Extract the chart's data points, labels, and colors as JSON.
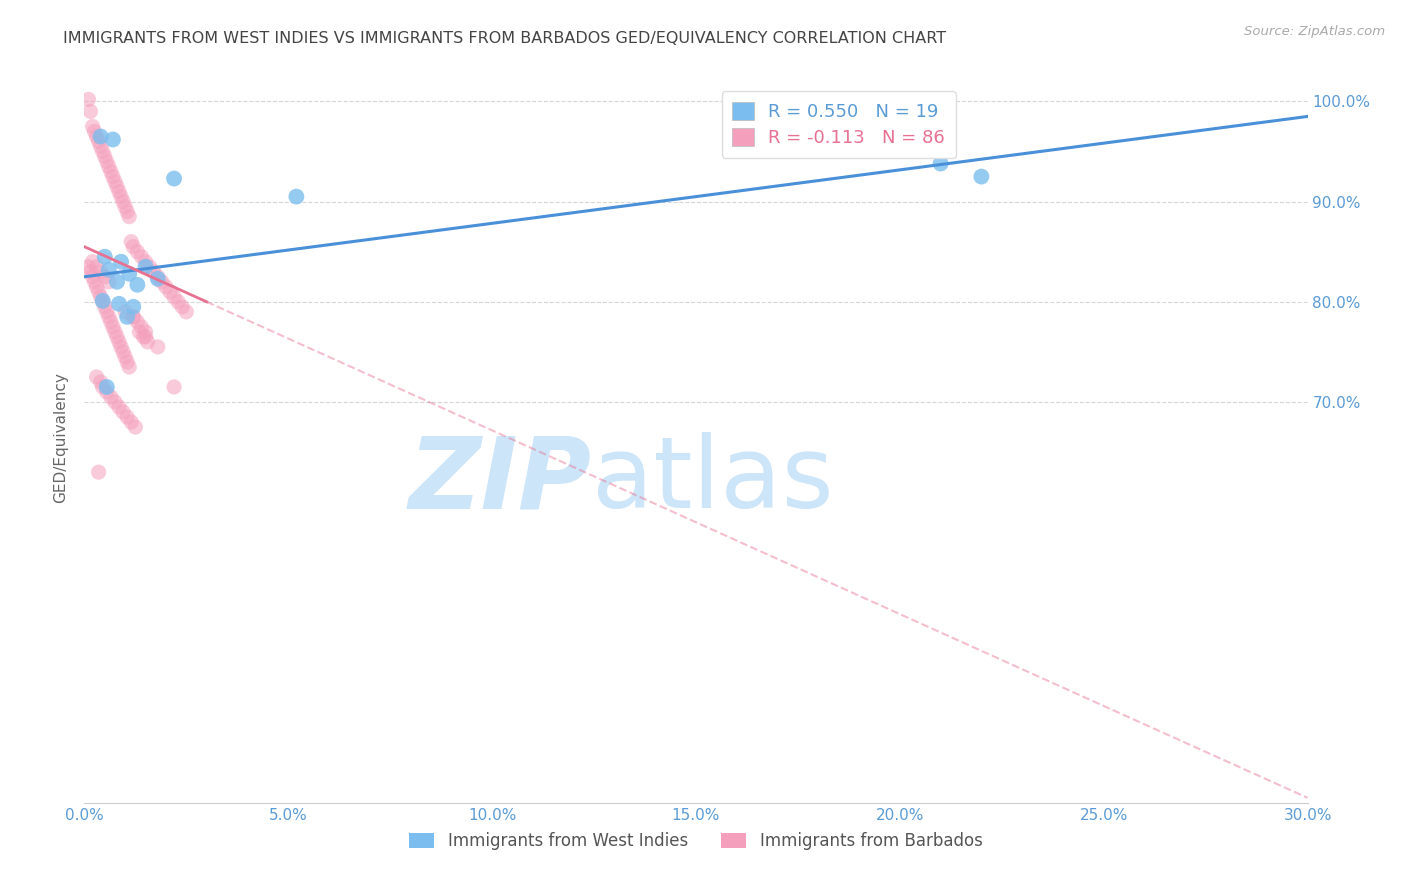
{
  "title": "IMMIGRANTS FROM WEST INDIES VS IMMIGRANTS FROM BARBADOS GED/EQUIVALENCY CORRELATION CHART",
  "source": "Source: ZipAtlas.com",
  "xlabel_vals": [
    0.0,
    5.0,
    10.0,
    15.0,
    20.0,
    25.0,
    30.0
  ],
  "ylabel_vals": [
    70.0,
    80.0,
    90.0,
    100.0
  ],
  "xmin": 0.0,
  "xmax": 30.0,
  "ymin": 30.0,
  "ymax": 103.0,
  "R_blue": 0.55,
  "N_blue": 19,
  "R_pink": -0.113,
  "N_pink": 86,
  "blue_color": "#7bbdee",
  "pink_color": "#f4a0bc",
  "blue_line_color": "#4a90d9",
  "pink_line_color": "#e87090",
  "ylabel": "GED/Equivalency",
  "legend_label_blue": "Immigrants from West Indies",
  "legend_label_pink": "Immigrants from Barbados",
  "watermark_zip": "ZIP",
  "watermark_atlas": "atlas",
  "watermark_color": "#cce5f8",
  "title_color": "#444444",
  "axis_label_color": "#5b9bd5",
  "grid_color": "#cccccc",
  "background_color": "#ffffff",
  "blue_line_x0": 0.0,
  "blue_line_y0": 82.5,
  "blue_line_x1": 30.0,
  "blue_line_y1": 98.5,
  "pink_line_x0": 0.0,
  "pink_line_y0": 85.5,
  "pink_line_x1": 30.0,
  "pink_line_y1": 30.5,
  "pink_solid_end": 3.0,
  "blue_x": [
    0.4,
    0.7,
    2.2,
    0.5,
    0.9,
    1.5,
    0.6,
    1.1,
    1.8,
    0.8,
    1.3,
    5.2,
    0.45,
    0.85,
    1.2,
    21.0,
    22.0,
    0.55,
    1.05
  ],
  "blue_y": [
    96.5,
    96.2,
    92.3,
    84.5,
    84.0,
    83.5,
    83.2,
    82.8,
    82.3,
    82.0,
    81.7,
    90.5,
    80.1,
    79.8,
    79.5,
    93.8,
    92.5,
    71.5,
    78.5
  ],
  "pink_x": [
    0.1,
    0.15,
    0.2,
    0.25,
    0.3,
    0.35,
    0.4,
    0.45,
    0.5,
    0.55,
    0.6,
    0.65,
    0.7,
    0.75,
    0.8,
    0.85,
    0.9,
    0.95,
    1.0,
    1.05,
    1.1,
    1.15,
    1.2,
    1.3,
    1.4,
    1.5,
    1.6,
    1.7,
    1.8,
    1.9,
    2.0,
    2.1,
    2.2,
    2.3,
    2.4,
    2.5,
    0.1,
    0.15,
    0.2,
    0.25,
    0.3,
    0.35,
    0.4,
    0.45,
    0.5,
    0.55,
    0.6,
    0.65,
    0.7,
    0.75,
    0.8,
    0.85,
    0.9,
    0.95,
    1.0,
    1.05,
    1.1,
    1.2,
    1.3,
    1.4,
    1.5,
    0.2,
    0.3,
    0.4,
    0.5,
    0.6,
    1.0,
    1.2,
    1.5,
    1.8,
    2.2,
    0.3,
    0.4,
    0.45,
    0.55,
    0.65,
    0.75,
    0.85,
    0.95,
    1.05,
    1.15,
    1.25,
    1.35,
    1.45,
    1.55,
    0.35
  ],
  "pink_y": [
    100.2,
    99.0,
    97.5,
    97.0,
    96.5,
    96.0,
    95.5,
    95.0,
    94.5,
    94.0,
    93.5,
    93.0,
    92.5,
    92.0,
    91.5,
    91.0,
    90.5,
    90.0,
    89.5,
    89.0,
    88.5,
    86.0,
    85.5,
    85.0,
    84.5,
    84.0,
    83.5,
    83.0,
    82.5,
    82.0,
    81.5,
    81.0,
    80.5,
    80.0,
    79.5,
    79.0,
    83.5,
    83.0,
    82.5,
    82.0,
    81.5,
    81.0,
    80.5,
    80.0,
    79.5,
    79.0,
    78.5,
    78.0,
    77.5,
    77.0,
    76.5,
    76.0,
    75.5,
    75.0,
    74.5,
    74.0,
    73.5,
    78.5,
    78.0,
    77.5,
    77.0,
    84.0,
    83.5,
    83.0,
    82.5,
    82.0,
    79.0,
    78.5,
    76.5,
    75.5,
    71.5,
    72.5,
    72.0,
    71.5,
    71.0,
    70.5,
    70.0,
    69.5,
    69.0,
    68.5,
    68.0,
    67.5,
    77.0,
    76.5,
    76.0,
    63.0
  ]
}
